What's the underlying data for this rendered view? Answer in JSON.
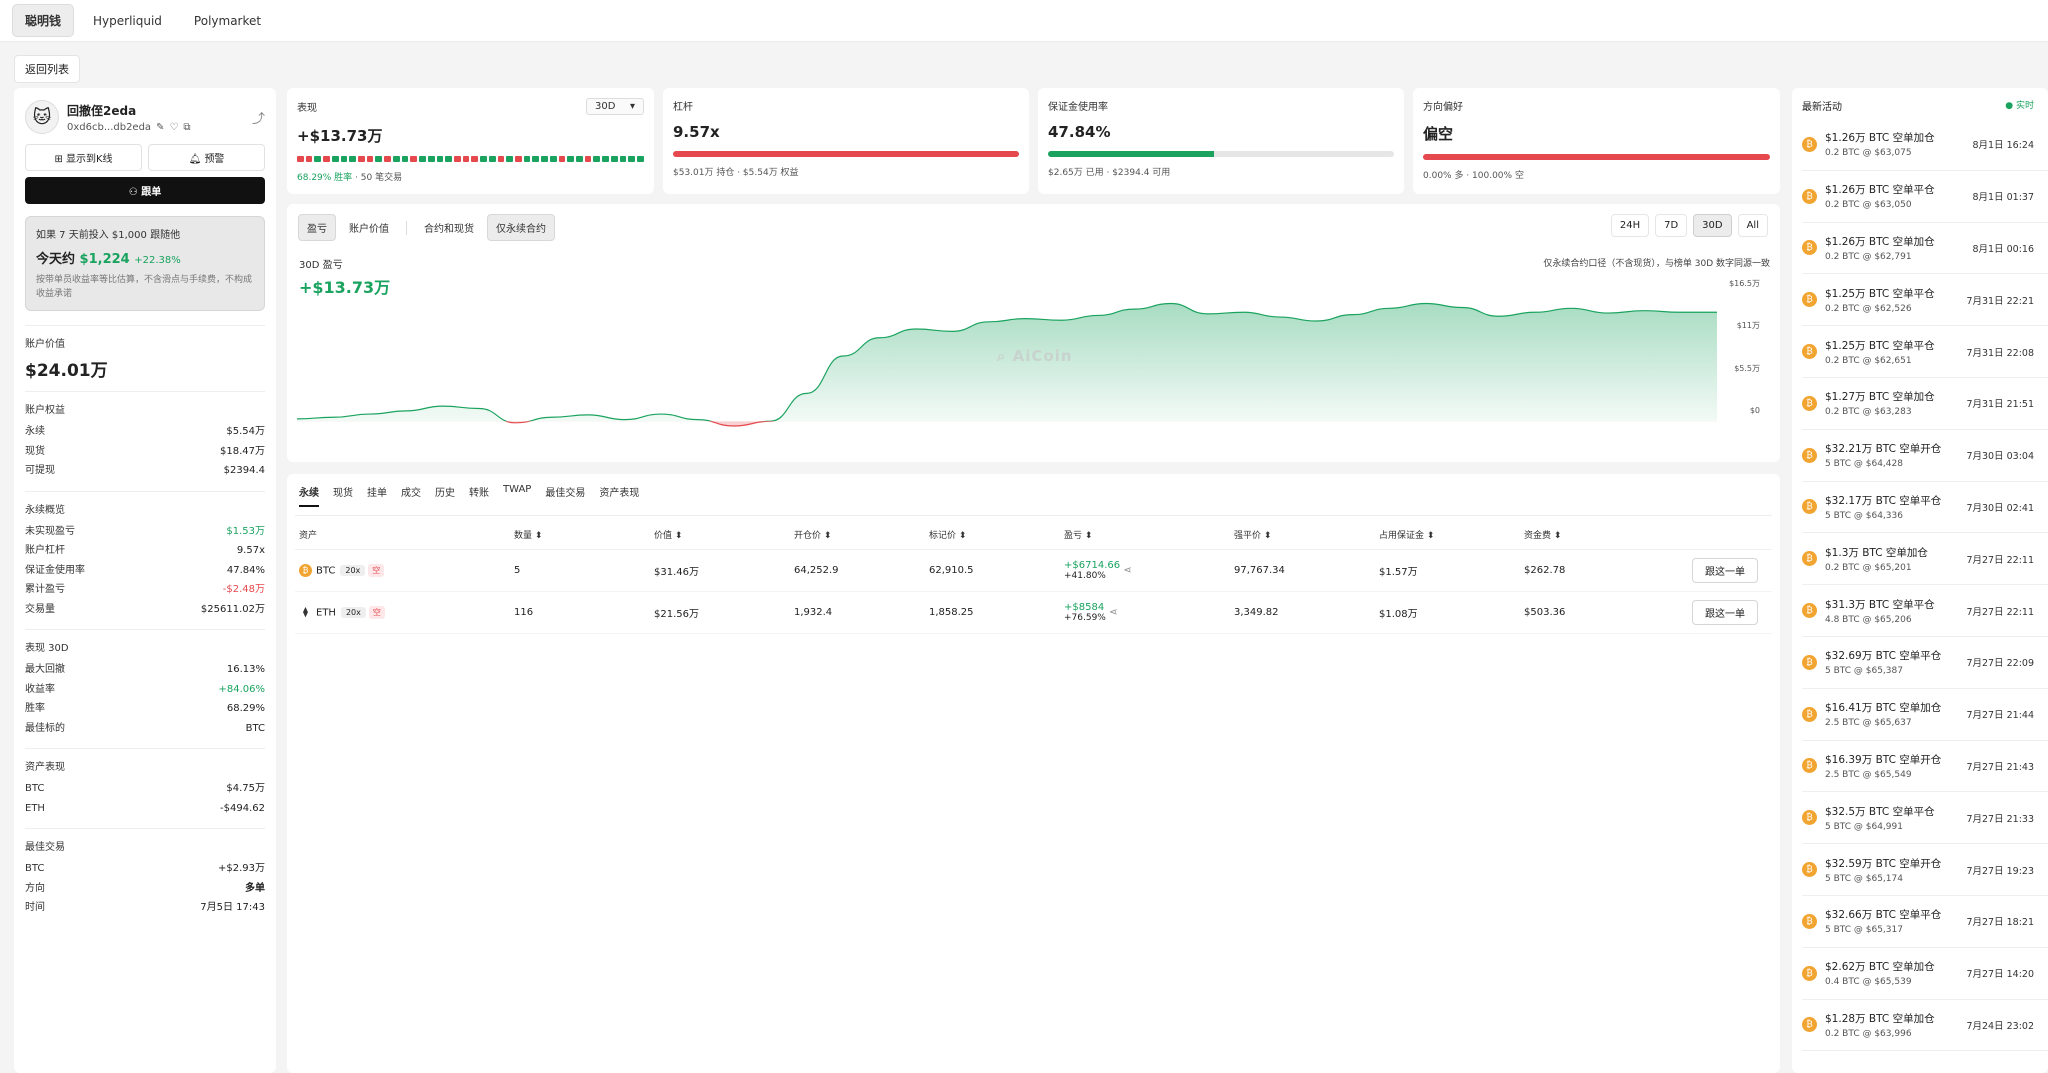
{
  "nav": {
    "tabs": [
      "聪明钱",
      "Hyperliquid",
      "Polymarket"
    ]
  },
  "back_label": "返回列表",
  "profile": {
    "name": "回撤侄2eda",
    "address": "0xd6cb...db2eda",
    "btn_kline": "显示到K线",
    "btn_alert": "预警",
    "btn_follow": "跟单"
  },
  "sim": {
    "line1": "如果 7 天前投入 $1,000 跟随他",
    "today_prefix": "今天约",
    "today_value": "$1,224",
    "today_pct": "+22.38%",
    "note": "按带单员收益率等比估算，不含滑点与手续费，不构成收益承诺"
  },
  "account": {
    "label": "账户价值",
    "value": "$24.01万"
  },
  "equity": {
    "title": "账户权益",
    "rows": [
      [
        "永续",
        "$5.54万"
      ],
      [
        "现货",
        "$18.47万"
      ],
      [
        "可提现",
        "$2394.4"
      ]
    ]
  },
  "perp": {
    "title": "永续概览",
    "rows": [
      [
        "未实现盈亏",
        "$1.53万"
      ],
      [
        "账户杠杆",
        "9.57x"
      ],
      [
        "保证金使用率",
        "47.84%"
      ],
      [
        "累计盈亏",
        "-$2.48万"
      ],
      [
        "交易量",
        "$25611.02万"
      ]
    ]
  },
  "perf30": {
    "title": "表现 30D",
    "rows": [
      [
        "最大回撤",
        "16.13%"
      ],
      [
        "收益率",
        "+84.06%"
      ],
      [
        "胜率",
        "68.29%"
      ],
      [
        "最佳标的",
        "BTC"
      ]
    ]
  },
  "assetperf": {
    "title": "资产表现",
    "rows": [
      [
        "BTC",
        "$4.75万"
      ],
      [
        "ETH",
        "-$494.62"
      ]
    ]
  },
  "besttrade": {
    "title": "最佳交易",
    "rows": [
      [
        "BTC",
        "+$2.93万"
      ],
      [
        "方向",
        "多单"
      ],
      [
        "时间",
        "7月5日 17:43"
      ]
    ]
  },
  "metrics": {
    "perf": {
      "title": "表现",
      "period": "30D",
      "value": "+$13.73万",
      "winrate": "68.29% 胜率",
      "trades": "· 50 笔交易",
      "segments": "rrgrgggrrgrggrggggrrrggrgrggggrggrgggggg"
    },
    "lev": {
      "title": "杠杆",
      "value": "9.57x",
      "sub": "$53.01万 持仓 · $5.54万 权益",
      "fill": 1.0
    },
    "margin": {
      "title": "保证金使用率",
      "value": "47.84%",
      "sub": "$2.65万 已用 · $2394.4 可用",
      "fill": 0.4784
    },
    "bias": {
      "title": "方向偏好",
      "value": "偏空",
      "sub": "0.00% 多 · 100.00% 空",
      "fill": 1.0
    },
    "colors": {
      "green": "#1aa35f",
      "red": "#e5484d"
    }
  },
  "chart": {
    "tabs": [
      "盈亏",
      "账户价值",
      "合约和现货",
      "仅永续合约"
    ],
    "timeframes": [
      "24H",
      "7D",
      "30D",
      "All"
    ],
    "label": "30D 盈亏",
    "value": "+$13.73万",
    "note": "仅永续合约口径（不含现货），与榜单 30D 数字同源一致",
    "watermark": "AiCoin",
    "ylabels": [
      "$16.5万",
      "$11万",
      "$5.5万",
      "$0"
    ]
  },
  "chart_data": {
    "type": "area",
    "ylim": [
      -0.6,
      16.5
    ],
    "unit": "万",
    "values": [
      0.3,
      0.5,
      0.9,
      1.3,
      1.9,
      1.6,
      -0.2,
      0.5,
      0.8,
      0.2,
      0.9,
      0.2,
      -0.6,
      0.0,
      3.5,
      8.2,
      10.5,
      11.6,
      11.3,
      12.5,
      12.9,
      12.7,
      13.3,
      14.1,
      14.8,
      13.5,
      13.7,
      13.1,
      12.6,
      13.4,
      14.2,
      14.8,
      14.3,
      13.2,
      13.7,
      14.2,
      13.6,
      13.9,
      13.7,
      13.7
    ]
  },
  "table": {
    "tabs": [
      "永续",
      "现货",
      "挂单",
      "成交",
      "历史",
      "转账",
      "TWAP",
      "最佳交易",
      "资产表现"
    ],
    "headers": [
      "资产",
      "数量 ⬍",
      "价值 ⬍",
      "开仓价 ⬍",
      "标记价 ⬍",
      "盈亏 ⬍",
      "强平价 ⬍",
      "占用保证金 ⬍",
      "资金费 ⬍",
      ""
    ],
    "follow_label": "跟这一单",
    "rows": [
      {
        "coin": "BTC",
        "icon": "₿",
        "lev": "20x",
        "dir": "空",
        "qty": "5",
        "value": "$31.46万",
        "entry": "64,252.9",
        "mark": "62,910.5",
        "pnl": "+$6714.66",
        "pnl_pct": "+41.80%",
        "liq": "97,767.34",
        "margin": "$1.57万",
        "funding": "$262.78"
      },
      {
        "coin": "ETH",
        "icon": "⧫",
        "lev": "20x",
        "dir": "空",
        "qty": "116",
        "value": "$21.56万",
        "entry": "1,932.4",
        "mark": "1,858.25",
        "pnl": "+$8584",
        "pnl_pct": "+76.59%",
        "liq": "3,349.82",
        "margin": "$1.08万",
        "funding": "$503.36"
      }
    ]
  },
  "activity": {
    "title": "最新活动",
    "live": "● 实时",
    "items": [
      {
        "t": "$1.26万 BTC 空单加仓",
        "d": "0.2 BTC @ $63,075",
        "time": "8月1日 16:24"
      },
      {
        "t": "$1.26万 BTC 空单平仓",
        "d": "0.2 BTC @ $63,050",
        "time": "8月1日 01:37"
      },
      {
        "t": "$1.26万 BTC 空单加仓",
        "d": "0.2 BTC @ $62,791",
        "time": "8月1日 00:16"
      },
      {
        "t": "$1.25万 BTC 空单平仓",
        "d": "0.2 BTC @ $62,526",
        "time": "7月31日 22:21"
      },
      {
        "t": "$1.25万 BTC 空单平仓",
        "d": "0.2 BTC @ $62,651",
        "time": "7月31日 22:08"
      },
      {
        "t": "$1.27万 BTC 空单加仓",
        "d": "0.2 BTC @ $63,283",
        "time": "7月31日 21:51"
      },
      {
        "t": "$32.21万 BTC 空单开仓",
        "d": "5 BTC @ $64,428",
        "time": "7月30日 03:04"
      },
      {
        "t": "$32.17万 BTC 空单平仓",
        "d": "5 BTC @ $64,336",
        "time": "7月30日 02:41"
      },
      {
        "t": "$1.3万 BTC 空单加仓",
        "d": "0.2 BTC @ $65,201",
        "time": "7月27日 22:11"
      },
      {
        "t": "$31.3万 BTC 空单平仓",
        "d": "4.8 BTC @ $65,206",
        "time": "7月27日 22:11"
      },
      {
        "t": "$32.69万 BTC 空单平仓",
        "d": "5 BTC @ $65,387",
        "time": "7月27日 22:09"
      },
      {
        "t": "$16.41万 BTC 空单加仓",
        "d": "2.5 BTC @ $65,637",
        "time": "7月27日 21:44"
      },
      {
        "t": "$16.39万 BTC 空单开仓",
        "d": "2.5 BTC @ $65,549",
        "time": "7月27日 21:43"
      },
      {
        "t": "$32.5万 BTC 空单平仓",
        "d": "5 BTC @ $64,991",
        "time": "7月27日 21:33"
      },
      {
        "t": "$32.59万 BTC 空单开仓",
        "d": "5 BTC @ $65,174",
        "time": "7月27日 19:23"
      },
      {
        "t": "$32.66万 BTC 空单平仓",
        "d": "5 BTC @ $65,317",
        "time": "7月27日 18:21"
      },
      {
        "t": "$2.62万 BTC 空单加仓",
        "d": "0.4 BTC @ $65,539",
        "time": "7月27日 14:20"
      },
      {
        "t": "$1.28万 BTC 空单加仓",
        "d": "0.2 BTC @ $63,996",
        "time": "7月24日 23:02"
      }
    ]
  }
}
